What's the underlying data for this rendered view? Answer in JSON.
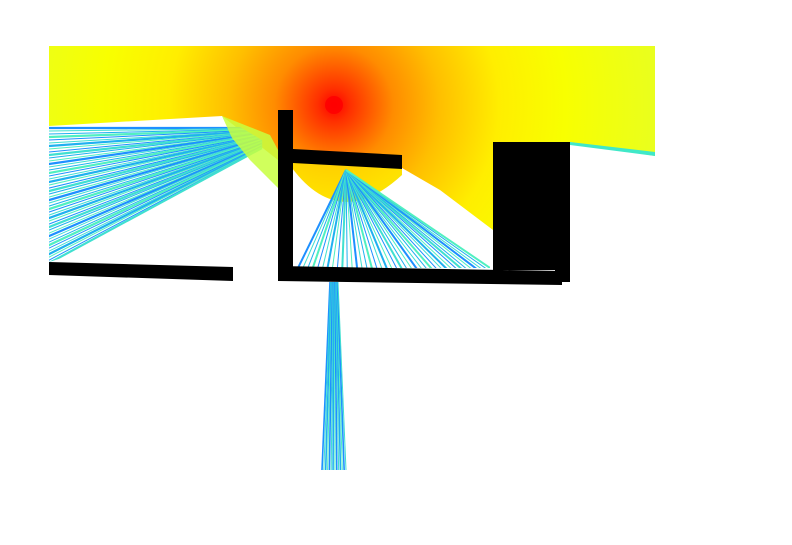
{
  "figure": {
    "kind": "radio signal propagation heatmap",
    "colormap": "jet",
    "background": "#ffffff",
    "source_color": "#ff0000",
    "wall_color": "#000000",
    "near_color": "#ff8000",
    "mid_color": "#ffff00",
    "far_color": "#40e0d0",
    "ray_color": "#1e90ff"
  }
}
